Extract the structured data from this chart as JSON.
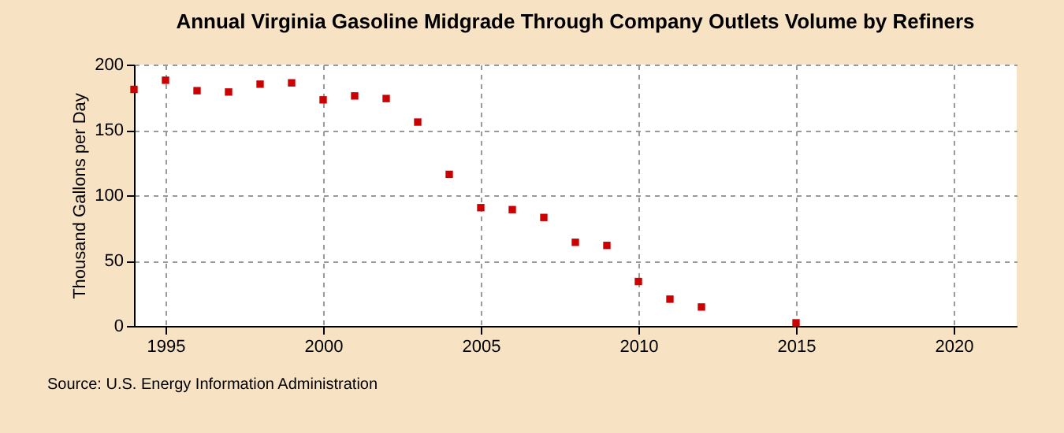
{
  "chart_data": {
    "type": "scatter",
    "title": "Annual Virginia Gasoline Midgrade Through Company Outlets Volume by Refiners",
    "ylabel": "Thousand Gallons per Day",
    "annotations": [
      "Source: U.S. Energy Information Administration"
    ],
    "x": [
      1994,
      1995,
      1996,
      1997,
      1998,
      1999,
      2000,
      2001,
      2002,
      2003,
      2004,
      2005,
      2006,
      2007,
      2008,
      2009,
      2010,
      2011,
      2012,
      2015
    ],
    "series": [
      {
        "color": "#cc0000",
        "values": [
          181,
          188,
          180,
          179,
          185,
          186,
          173,
          176,
          174,
          156,
          116,
          90.5,
          89,
          83,
          64,
          61.6,
          34,
          20.5,
          14.5,
          2.4
        ]
      }
    ],
    "xlim": [
      1994,
      2022
    ],
    "xticks": [
      1995,
      2000,
      2005,
      2010,
      2015,
      2020
    ],
    "ylim": [
      0,
      200
    ],
    "yticks": [
      0,
      50,
      100,
      150,
      200
    ],
    "grid": true,
    "marker": "square"
  }
}
